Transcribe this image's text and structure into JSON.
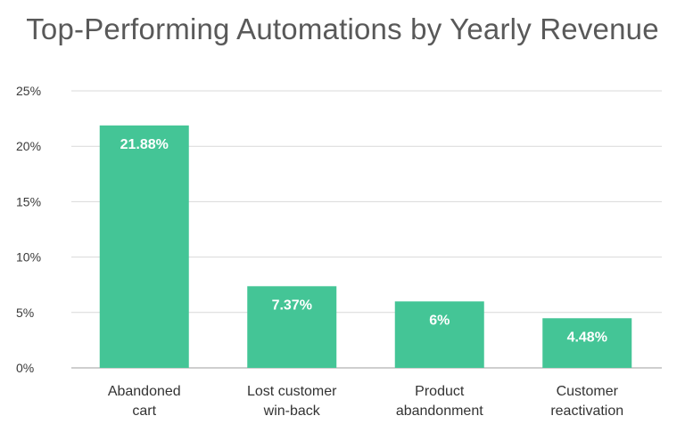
{
  "chart_data": {
    "type": "bar",
    "title": "Top-Performing Automations by Yearly Revenue",
    "categories": [
      [
        "Abandoned",
        "cart"
      ],
      [
        "Lost customer",
        "win-back"
      ],
      [
        "Product",
        "abandonment"
      ],
      [
        "Customer",
        "reactivation"
      ]
    ],
    "values": [
      21.88,
      7.37,
      6,
      4.48
    ],
    "data_labels": [
      "21.88%",
      "7.37%",
      "6%",
      "4.48%"
    ],
    "yticks": [
      0,
      5,
      10,
      15,
      20,
      25
    ],
    "ytick_labels": [
      "0%",
      "5%",
      "10%",
      "15%",
      "20%",
      "25%"
    ],
    "ylim": [
      0,
      25
    ],
    "xlabel": "",
    "ylabel": "",
    "grid": true,
    "legend": "none",
    "bar_color": "#44c596",
    "grid_color": "#d9d9d9",
    "axis_color": "#9e9e9e"
  }
}
